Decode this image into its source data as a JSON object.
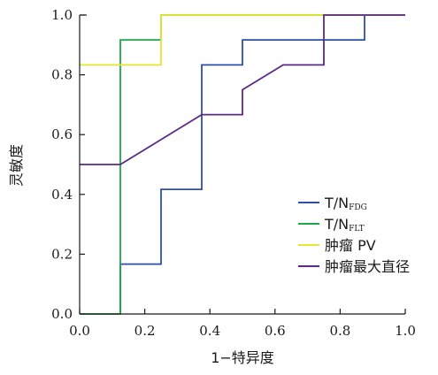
{
  "chart_data": {
    "type": "line",
    "title": "",
    "xlabel": "1−特异度",
    "ylabel": "灵敏度",
    "xlim": [
      0.0,
      1.0
    ],
    "ylim": [
      0.0,
      1.0
    ],
    "x_ticks": [
      "0.0",
      "0.2",
      "0.4",
      "0.6",
      "0.8",
      "1.0"
    ],
    "y_ticks": [
      "0.0",
      "0.2",
      "0.4",
      "0.6",
      "0.8",
      "1.0"
    ],
    "grid": false,
    "legend_position": "bottom-right",
    "series": [
      {
        "name": "T/N",
        "name_sub": "FDG",
        "color": "#2e4fa8",
        "x": [
          0.125,
          0.125,
          0.25,
          0.25,
          0.375,
          0.375,
          0.5,
          0.5,
          0.875,
          0.875,
          1.0
        ],
        "y": [
          0.0,
          0.167,
          0.167,
          0.417,
          0.417,
          0.833,
          0.833,
          0.917,
          0.917,
          1.0,
          1.0
        ]
      },
      {
        "name": "T/N",
        "name_sub": "FLT",
        "color": "#1fa84a",
        "x": [
          0.0,
          0.125,
          0.125,
          0.25,
          0.25,
          1.0
        ],
        "y": [
          0.0,
          0.0,
          0.917,
          0.917,
          1.0,
          1.0
        ]
      },
      {
        "name": "肿瘤 PV",
        "color": "#e6e62e",
        "x": [
          0.0,
          0.25,
          0.25,
          1.0
        ],
        "y": [
          0.833,
          0.833,
          1.0,
          1.0
        ]
      },
      {
        "name": "肿瘤最大直径",
        "color": "#5b2a86",
        "x": [
          0.0,
          0.125,
          0.375,
          0.5,
          0.5,
          0.625,
          0.75,
          0.75,
          1.0
        ],
        "y": [
          0.5,
          0.5,
          0.667,
          0.667,
          0.75,
          0.833,
          0.833,
          1.0,
          1.0
        ]
      }
    ]
  }
}
